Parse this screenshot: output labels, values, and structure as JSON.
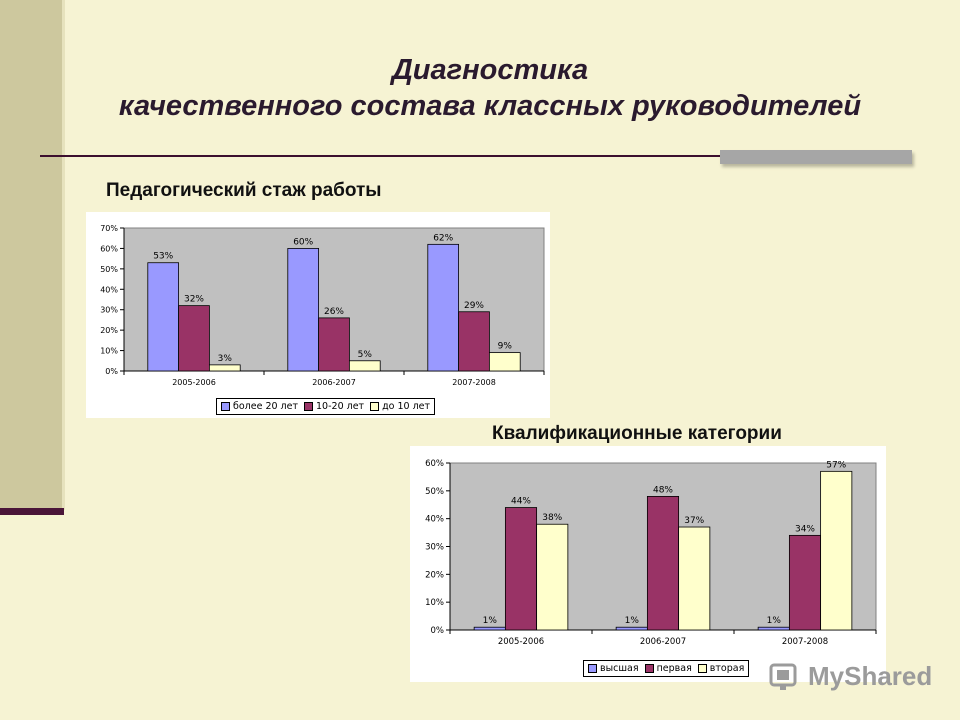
{
  "slide": {
    "title_line1": "Диагностика",
    "title_line2": "качественного состава классных руководителей",
    "watermark": "MyShared"
  },
  "colors": {
    "background": "#f6f3d3",
    "series1": "#9999ff",
    "series2": "#993366",
    "series3": "#ffffcc",
    "plot_bg": "#c0c0c0"
  },
  "chart_data": [
    {
      "type": "bar",
      "title": "Педагогический стаж работы",
      "categories": [
        "2005-2006",
        "2006-2007",
        "2007-2008"
      ],
      "series": [
        {
          "name": "более 20 лет",
          "values": [
            53,
            60,
            62
          ],
          "labels": [
            "53%",
            "60%",
            "62%"
          ]
        },
        {
          "name": "10-20 лет",
          "values": [
            32,
            26,
            29
          ],
          "labels": [
            "32%",
            "26%",
            "29%"
          ]
        },
        {
          "name": "до 10 лет",
          "values": [
            3,
            5,
            9
          ],
          "labels": [
            "3%",
            "5%",
            "9%"
          ]
        }
      ],
      "ylim": [
        0,
        70
      ],
      "yticks": [
        "0%",
        "10%",
        "20%",
        "30%",
        "40%",
        "50%",
        "60%",
        "70%"
      ],
      "grid": false,
      "legend": "bottom"
    },
    {
      "type": "bar",
      "title": "Квалификационные категории",
      "categories": [
        "2005-2006",
        "2006-2007",
        "2007-2008"
      ],
      "series": [
        {
          "name": "высшая",
          "values": [
            1,
            1,
            1
          ],
          "labels": [
            "1%",
            "1%",
            "1%"
          ]
        },
        {
          "name": "первая",
          "values": [
            44,
            48,
            34
          ],
          "labels": [
            "44%",
            "48%",
            "34%"
          ]
        },
        {
          "name": "вторая",
          "values": [
            38,
            37,
            57
          ],
          "labels": [
            "38%",
            "37%",
            "57%"
          ]
        }
      ],
      "ylim": [
        0,
        60
      ],
      "yticks": [
        "0%",
        "10%",
        "20%",
        "30%",
        "40%",
        "50%",
        "60%"
      ],
      "grid": false,
      "legend": "bottom"
    }
  ]
}
